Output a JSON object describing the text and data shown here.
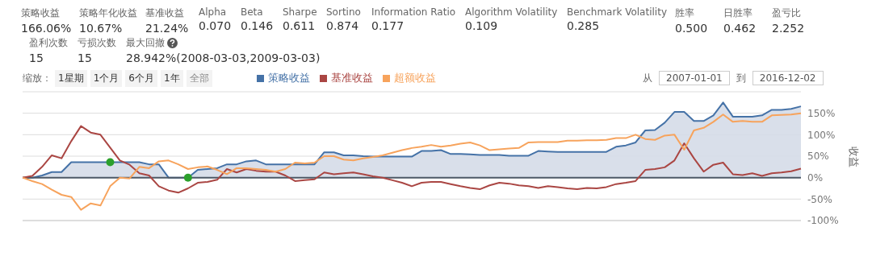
{
  "chart_data": [
    {
      "type": "other",
      "categories": [
        "策略收益",
        "策略年化收益",
        "基准收益",
        "Alpha",
        "Beta",
        "Sharpe",
        "Sortino",
        "Information Ratio",
        "Algorithm Volatility",
        "Benchmark Volatility",
        "胜率",
        "日胜率",
        "盈亏比",
        "盈利次数",
        "亏损次数",
        "最大回撤"
      ],
      "value_labels": [
        "166.06%",
        "10.67%",
        "21.24%",
        "0.070",
        "0.146",
        "0.611",
        "0.874",
        "0.177",
        "0.109",
        "0.285",
        "0.500",
        "0.462",
        "2.252",
        "15",
        "15",
        "28.942%(2008-03-03,2009-03-03)"
      ]
    },
    {
      "type": "line",
      "ylabel": "收益",
      "legend": "top",
      "grid": "y",
      "annotations": [
        "缩放：",
        "1星期",
        "1个月",
        "6个月",
        "1年",
        "全部",
        "从",
        "2007-01-01",
        "到",
        "2016-12-02"
      ],
      "categories": [
        null,
        null,
        null,
        null,
        null,
        null,
        null,
        null,
        null,
        null,
        null,
        null,
        null,
        null,
        null,
        null,
        null,
        null,
        null,
        null,
        null,
        null,
        null,
        null,
        null,
        null,
        null,
        null,
        null,
        null,
        null,
        null,
        null,
        null,
        null,
        null,
        null,
        null,
        null,
        null,
        null,
        null,
        null,
        null,
        null,
        null,
        null,
        null,
        null,
        null,
        null,
        null,
        null,
        null,
        null,
        null,
        null,
        null,
        null,
        null,
        null,
        null,
        null,
        null,
        null,
        null,
        null,
        null,
        null,
        null,
        null,
        null,
        null,
        null,
        null,
        null,
        null,
        null,
        null,
        null,
        null
      ],
      "ylim": [
        -100,
        200
      ],
      "yticks": [
        {
          "value": -100,
          "label": "-100%"
        },
        {
          "value": -50,
          "label": "-50%"
        },
        {
          "value": 0,
          "label": "0%"
        },
        {
          "value": 50,
          "label": "50%"
        },
        {
          "value": 100,
          "label": "100%"
        },
        {
          "value": 150,
          "label": "150%"
        }
      ],
      "ref_lines": [
        {
          "axis": "y",
          "value": 0,
          "color": "#4d5866"
        }
      ],
      "series": [
        {
          "name": "策略收益",
          "type": "area",
          "color": "#4572a7",
          "values": [
            0,
            0,
            5,
            13,
            13,
            36,
            36,
            36,
            36,
            36,
            36,
            36,
            36,
            31,
            31,
            0,
            0,
            0,
            18,
            20,
            22,
            31,
            31,
            38,
            40,
            31,
            31,
            31,
            31,
            31,
            31,
            59,
            59,
            52,
            52,
            50,
            49,
            49,
            49,
            49,
            49,
            62,
            62,
            64,
            55,
            55,
            54,
            53,
            53,
            53,
            51,
            51,
            51,
            62,
            61,
            60,
            60,
            60,
            60,
            60,
            60,
            72,
            75,
            82,
            110,
            111,
            128,
            153,
            153,
            132,
            132,
            145,
            175,
            142,
            142,
            142,
            145,
            158,
            158,
            160,
            166
          ]
        },
        {
          "name": "基准收益",
          "color": "#aa4643",
          "values": [
            0,
            4,
            25,
            52,
            45,
            85,
            120,
            105,
            100,
            70,
            40,
            30,
            10,
            5,
            -20,
            -30,
            -35,
            -25,
            -12,
            -10,
            -5,
            20,
            12,
            20,
            16,
            14,
            14,
            5,
            -8,
            -6,
            -4,
            12,
            8,
            10,
            12,
            8,
            3,
            0,
            -6,
            -12,
            -20,
            -12,
            -10,
            -10,
            -15,
            -20,
            -24,
            -27,
            -18,
            -12,
            -14,
            -18,
            -20,
            -24,
            -20,
            -22,
            -25,
            -27,
            -24,
            -25,
            -22,
            -15,
            -12,
            -8,
            18,
            20,
            24,
            40,
            80,
            45,
            14,
            30,
            35,
            8,
            6,
            10,
            4,
            10,
            12,
            15,
            21
          ]
        },
        {
          "name": "超额收益",
          "color": "#f7a35c",
          "values": [
            0,
            -8,
            -15,
            -28,
            -40,
            -45,
            -75,
            -60,
            -65,
            -20,
            0,
            -2,
            25,
            22,
            38,
            40,
            31,
            20,
            24,
            26,
            18,
            8,
            22,
            22,
            20,
            18,
            14,
            20,
            35,
            33,
            35,
            50,
            50,
            42,
            40,
            45,
            48,
            52,
            58,
            64,
            69,
            72,
            76,
            72,
            75,
            79,
            82,
            75,
            64,
            66,
            68,
            69,
            82,
            83,
            83,
            83,
            86,
            86,
            87,
            87,
            88,
            92,
            92,
            100,
            90,
            88,
            98,
            100,
            65,
            110,
            116,
            130,
            147,
            130,
            132,
            130,
            130,
            145,
            146,
            147,
            150
          ]
        },
        {
          "type": "scatter",
          "color": "#2ca02c",
          "values": [
            null,
            null,
            null,
            null,
            null,
            null,
            null,
            null,
            null,
            36,
            null,
            null,
            null,
            null,
            null,
            null,
            null,
            0,
            null,
            null,
            null,
            null,
            null,
            null,
            null,
            null,
            null,
            null,
            null,
            null,
            null,
            null,
            null,
            null,
            null,
            null,
            null,
            null,
            null,
            null,
            null,
            null,
            null,
            null,
            null,
            null,
            null,
            null,
            null,
            null,
            null,
            null,
            null,
            null,
            null,
            null,
            null,
            null,
            null,
            null,
            null,
            null,
            null,
            null,
            null,
            null,
            null,
            null,
            null,
            null,
            null,
            null,
            null,
            null,
            null,
            null,
            null,
            null,
            null,
            null,
            null
          ]
        }
      ]
    }
  ]
}
